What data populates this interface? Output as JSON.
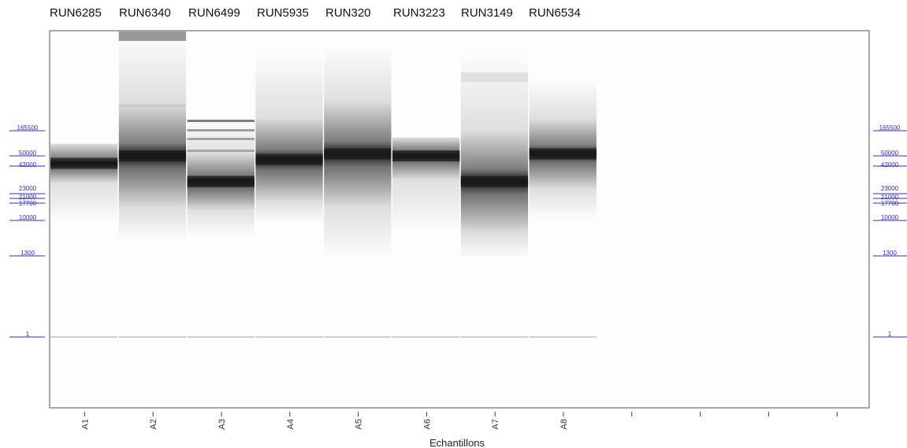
{
  "run_labels": [
    "RUN6285",
    "RUN6340",
    "RUN6499",
    "RUN5935",
    "RUN320",
    "RUN3223",
    "RUN3149",
    "RUN6534"
  ],
  "chart_data": {
    "type": "gel electrophoresis",
    "xlabel": "Echantillons",
    "ylabel": "",
    "lanes": [
      "A1",
      "A2",
      "A3",
      "A4",
      "A5",
      "A6",
      "A7",
      "A8",
      "",
      "",
      "",
      ""
    ],
    "ladder_markers": [
      {
        "label": "165500",
        "size_bp": 165500
      },
      {
        "label": "50000",
        "size_bp": 50000
      },
      {
        "label": "42000",
        "size_bp": 42000
      },
      {
        "label": "23000",
        "size_bp": 23000
      },
      {
        "label": "21000",
        "size_bp": 21000
      },
      {
        "label": "17700",
        "size_bp": 17700
      },
      {
        "label": "10000",
        "size_bp": 10000
      },
      {
        "label": "1300",
        "size_bp": 1300
      },
      {
        "label": "1",
        "size_bp": 1
      }
    ],
    "samples": [
      {
        "lane": "A1",
        "run": "RUN6285",
        "main_band_bp": 44000,
        "smear_bp": [
          9000,
          90000
        ]
      },
      {
        "lane": "A2",
        "run": "RUN6340",
        "main_band_bp": 50000,
        "smear_bp": [
          3000,
          1000000
        ]
      },
      {
        "lane": "A3",
        "run": "RUN6499",
        "main_band_bp": 30000,
        "smear_bp": [
          4000,
          185000
        ]
      },
      {
        "lane": "A4",
        "run": "RUN5935",
        "main_band_bp": 47000,
        "smear_bp": [
          9000,
          600000
        ]
      },
      {
        "lane": "A5",
        "run": "RUN320",
        "main_band_bp": 55000,
        "smear_bp": [
          1000,
          700000
        ]
      },
      {
        "lane": "A6",
        "run": "RUN3223",
        "main_band_bp": 50000,
        "smear_bp": [
          5000,
          120000
        ]
      },
      {
        "lane": "A7",
        "run": "RUN3149",
        "main_band_bp": 30000,
        "smear_bp": [
          1000,
          600000
        ]
      },
      {
        "lane": "A8",
        "run": "RUN6534",
        "main_band_bp": 55000,
        "smear_bp": [
          10000,
          300000
        ]
      }
    ]
  },
  "colors": {
    "marker": "#2b2bd6",
    "band": "#1a1a1a",
    "background": "#fdfdfd"
  }
}
